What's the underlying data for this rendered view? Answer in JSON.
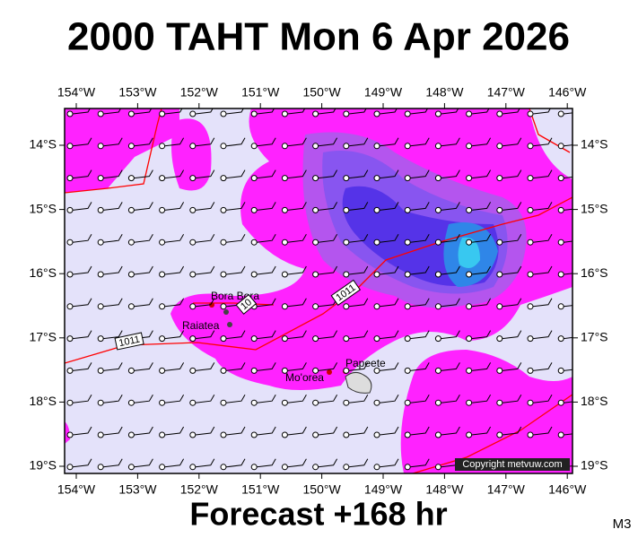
{
  "header": {
    "title": "2000 TAHT Mon 6 Apr 2026"
  },
  "map": {
    "lon_labels": [
      "154°W",
      "153°W",
      "152°W",
      "151°W",
      "150°W",
      "149°W",
      "148°W",
      "147°W",
      "146°W"
    ],
    "lat_labels": [
      "14°S",
      "15°S",
      "16°S",
      "17°S",
      "18°S",
      "19°S"
    ],
    "places": [
      "Bora Bora",
      "Raiatea",
      "Mo'orea",
      "Papeete"
    ],
    "isobar_labels": [
      "1011",
      "1011",
      "10"
    ],
    "copyright": "Copyright metvuw.com"
  },
  "footer": {
    "caption": "Forecast +168 hr",
    "code": "M3"
  }
}
